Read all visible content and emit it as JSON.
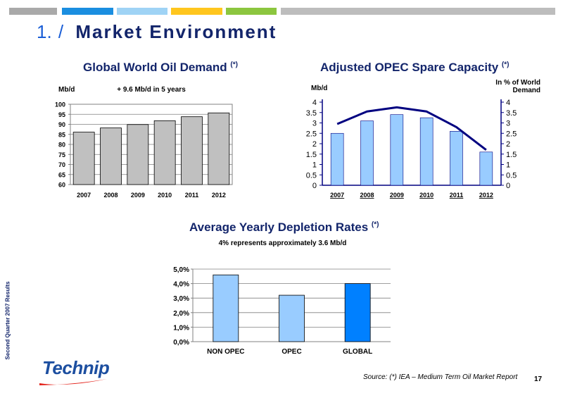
{
  "header": {
    "title_num": "1.",
    "title_slash": "/",
    "title_text": "Market Environment",
    "bars": [
      "#a9a9a9",
      "#1a8ee0",
      "#9fd3f5",
      "#ffc61e",
      "#8cc63f",
      "#bdbdbd"
    ]
  },
  "sidebar": {
    "text": "Second Quarter 2007 Results"
  },
  "logo": {
    "text": "Technip"
  },
  "footer": {
    "source": "Source: (*) IEA – Medium Term Oil Market Report",
    "page": "17"
  },
  "chart_data": [
    {
      "type": "bar",
      "title": "Global World Oil Demand",
      "title_marker": "(*)",
      "annotation": "+ 9.6 Mb/d in 5 years",
      "ylabel": "Mb/d",
      "categories": [
        "2007",
        "2008",
        "2009",
        "2010",
        "2011",
        "2012"
      ],
      "values": [
        86.1,
        88.2,
        89.9,
        91.8,
        93.8,
        95.7
      ],
      "ylim": [
        60,
        100
      ],
      "yticks": [
        60,
        65,
        70,
        75,
        80,
        85,
        90,
        95,
        100
      ],
      "grid": true,
      "bar_color": "#c0c0c0",
      "plot_bg": "#ffffff"
    },
    {
      "type": "bar",
      "title": "Adjusted OPEC Spare Capacity",
      "title_marker": "(*)",
      "ylabel": "Mb/d",
      "ylabel_right": "In % of World Demand",
      "ylabel_right_lines": [
        "In % of World",
        "Demand"
      ],
      "categories": [
        "2007",
        "2008",
        "2009",
        "2010",
        "2011",
        "2012"
      ],
      "series": [
        {
          "type": "bar",
          "values": [
            2.5,
            3.1,
            3.4,
            3.25,
            2.6,
            1.6
          ],
          "color": "#99ccff"
        },
        {
          "type": "line",
          "axis": "right",
          "values": [
            2.95,
            3.55,
            3.75,
            3.55,
            2.8,
            1.7
          ],
          "color": "#000080"
        }
      ],
      "ylim": [
        0,
        4
      ],
      "yticks": [
        0,
        0.5,
        1,
        1.5,
        2,
        2.5,
        3,
        3.5,
        4
      ],
      "ylim_right": [
        0,
        4
      ],
      "yticks_right": [
        0,
        0.5,
        1,
        1.5,
        2,
        2.5,
        3,
        3.5,
        4
      ],
      "grid": false,
      "axis_color": "#000080"
    },
    {
      "type": "bar",
      "title": "Average Yearly Depletion Rates",
      "title_marker": "(*)",
      "subtitle": "4% represents approximately 3.6 Mb/d",
      "categories": [
        "NON OPEC",
        "OPEC",
        "GLOBAL"
      ],
      "values": [
        4.6,
        3.2,
        4.0
      ],
      "colors": [
        "#99ccff",
        "#99ccff",
        "#0080ff"
      ],
      "ylim": [
        0,
        5
      ],
      "yticks": [
        0,
        1,
        2,
        3,
        4,
        5
      ],
      "ytick_labels": [
        "0,0%",
        "1,0%",
        "2,0%",
        "3,0%",
        "4,0%",
        "5,0%"
      ],
      "grid": true
    }
  ]
}
